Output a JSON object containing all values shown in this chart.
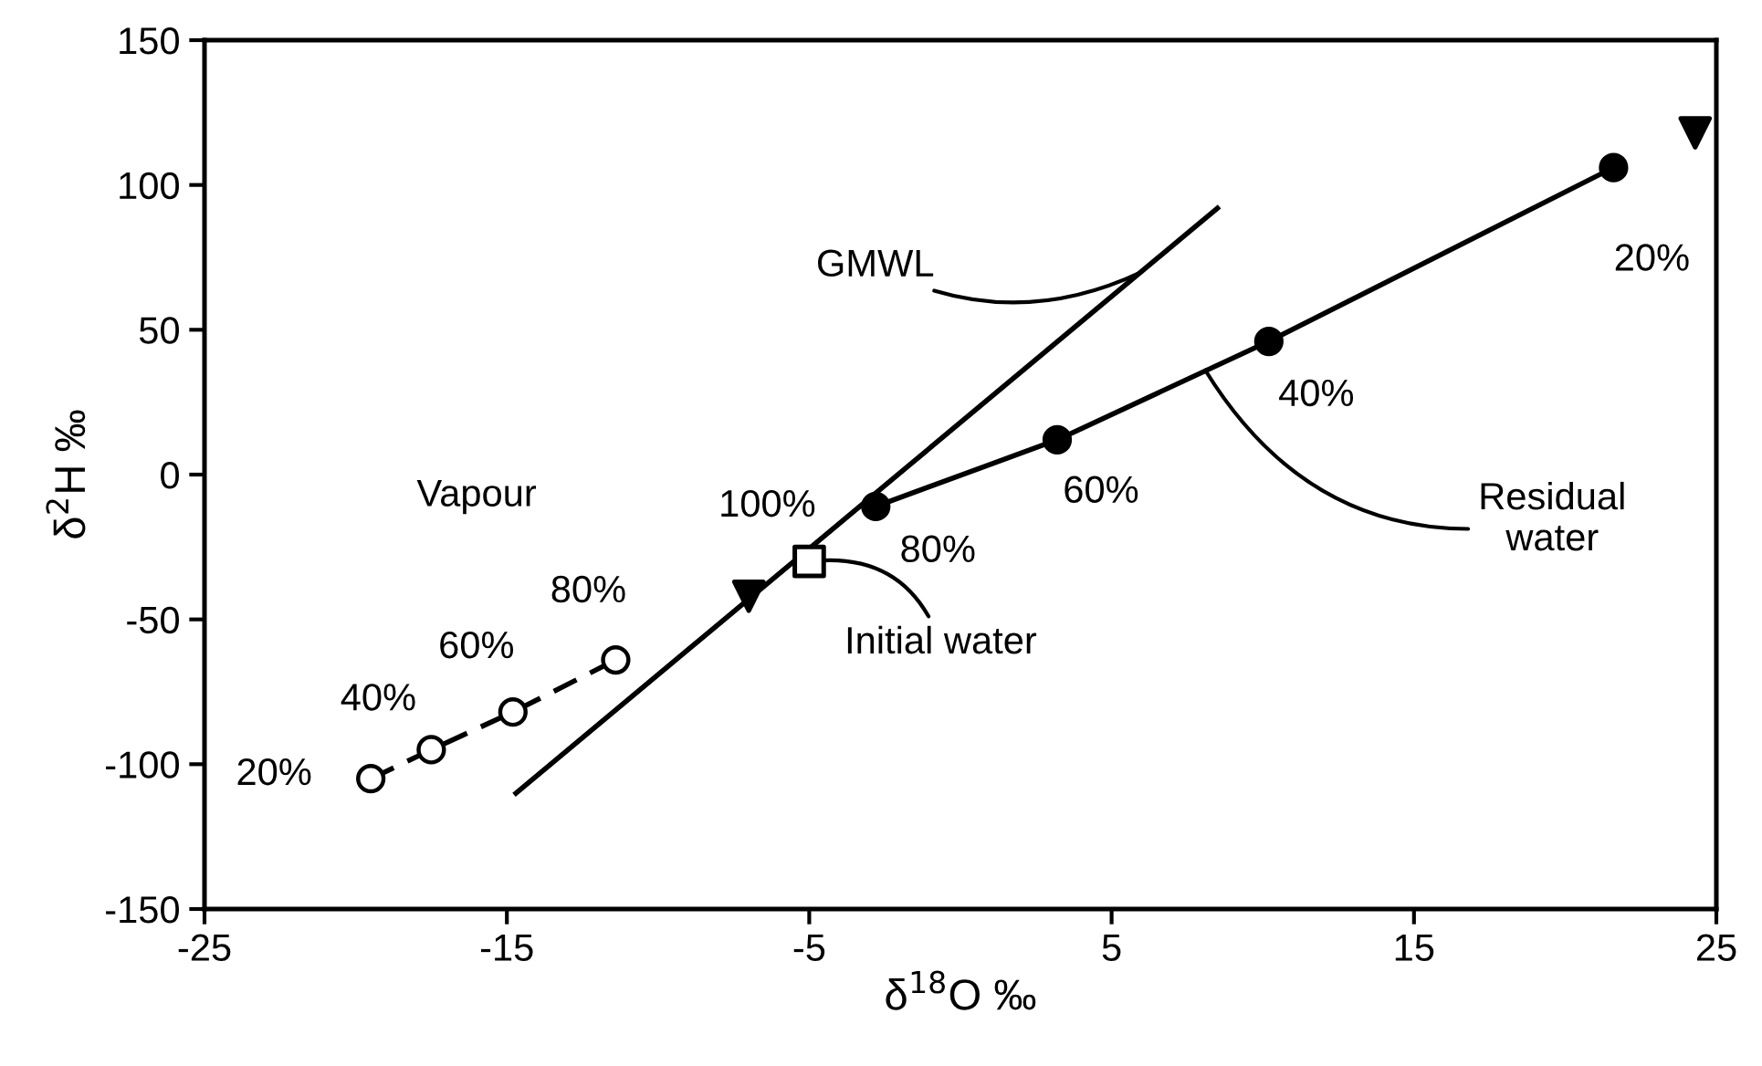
{
  "chart_data": {
    "type": "line",
    "xlabel": "δ$^{18}$O ‰",
    "ylabel": "δ$^{2}$H ‰",
    "xlim": [
      -25,
      25
    ],
    "xticks": [
      -25,
      -15,
      -5,
      5,
      15,
      25
    ],
    "ylim": [
      -150,
      150
    ],
    "yticks": [
      -150,
      -100,
      -50,
      0,
      50,
      100,
      150
    ],
    "grid": false,
    "legend": false,
    "series": [
      {
        "color": "#000000",
        "x": [
          -14.7,
          8.5
        ],
        "values": [
          -110,
          92
        ],
        "marker": "none",
        "line_style": "solid"
      },
      {
        "color": "#000000",
        "x": [
          -2.8,
          3.2,
          10.2,
          21.6
        ],
        "values": [
          -11,
          12,
          46,
          106
        ],
        "marker": "circle",
        "line_style": "solid"
      },
      {
        "color": "#ffffff",
        "x": [
          -19.5,
          -17.5,
          -14.8,
          -11.4
        ],
        "values": [
          -105,
          -95,
          -82,
          -64
        ],
        "marker": "circle",
        "line_style": "dashed"
      },
      {
        "type": "scatter",
        "color": "#ffffff",
        "x": [
          -5
        ],
        "values": [
          -30
        ],
        "marker": "square"
      },
      {
        "type": "scatter",
        "color": "#000000",
        "x": [
          24.3,
          -7.0
        ],
        "values": [
          118,
          -42
        ],
        "marker": "triangle"
      }
    ],
    "annotations": [
      {
        "text": "GMWL",
        "x": 6.0,
        "y": 70
      },
      {
        "text": "Residual\nwater",
        "x": 8.1,
        "y": 36
      },
      {
        "text": "Initial water",
        "x": -5,
        "y": -30
      },
      "Vapour",
      {
        "text": "100%",
        "x": -5,
        "y": -30
      },
      {
        "text": "80%",
        "x": -2.8,
        "y": -11
      },
      {
        "text": "60%",
        "x": 3.2,
        "y": 12
      },
      {
        "text": "40%",
        "x": 10.2,
        "y": 46
      },
      {
        "text": "20%",
        "x": 21.6,
        "y": 106
      },
      {
        "text": "20%",
        "x": -19.5,
        "y": -105
      },
      {
        "text": "40%",
        "x": -17.5,
        "y": -95
      },
      {
        "text": "60%",
        "x": -14.8,
        "y": -82
      },
      {
        "text": "80%",
        "x": -11.4,
        "y": -64
      }
    ]
  }
}
